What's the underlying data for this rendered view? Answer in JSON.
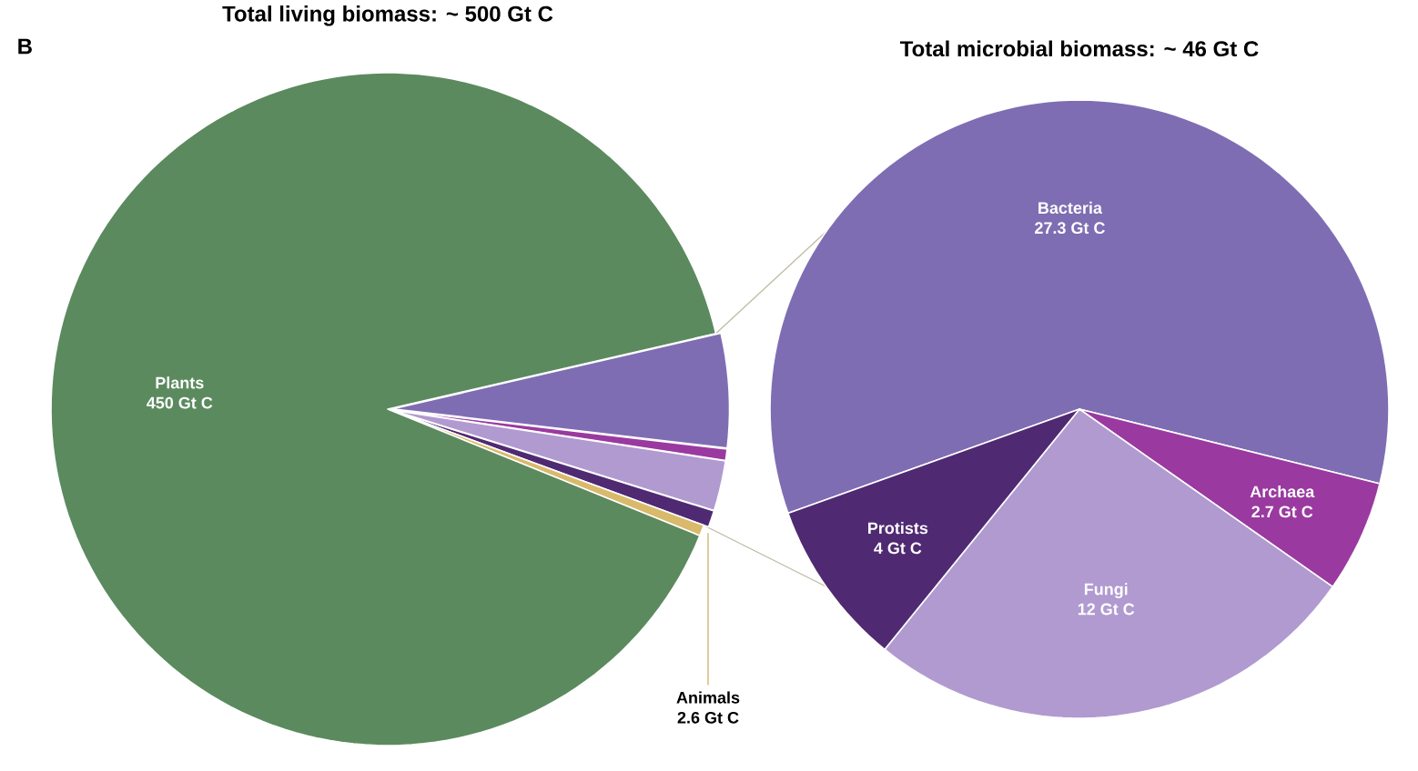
{
  "chart_data": [
    {
      "type": "pie",
      "title": "Total living biomass: ~ 500 Gt C",
      "annotations": [
        "B"
      ],
      "categories": [
        null,
        null,
        null,
        null,
        "Animals",
        "Plants"
      ],
      "values": [
        27.3,
        2.7,
        12,
        4,
        2.6,
        450
      ],
      "value_labels": [
        null,
        null,
        null,
        null,
        "2.6 Gt C",
        "450 Gt C"
      ],
      "colors": [
        "#7f6db3",
        "#9a3aa0",
        "#b09ad0",
        "#4f2a72",
        "#d9b96a",
        "#5b8a5e"
      ]
    },
    {
      "type": "pie",
      "title": "Total microbial biomass: ~ 46 Gt C",
      "categories": [
        "Bacteria",
        "Archaea",
        "Fungi",
        "Protists"
      ],
      "values": [
        27.3,
        2.7,
        12,
        4
      ],
      "value_labels": [
        "27.3 Gt C",
        "2.7 Gt C",
        "12 Gt C",
        "4 Gt C"
      ],
      "colors": [
        "#7f6db3",
        "#9a3aa0",
        "#b09ad0",
        "#4f2a72"
      ]
    }
  ]
}
